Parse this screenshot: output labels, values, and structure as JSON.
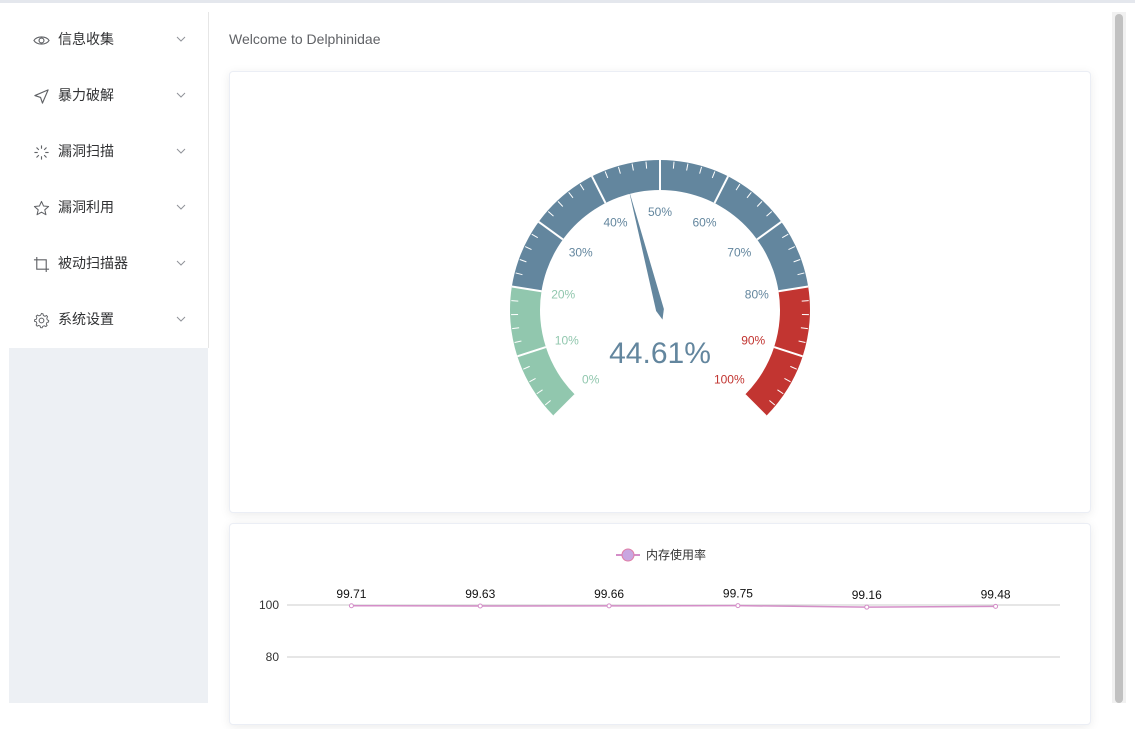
{
  "sidebar": {
    "items": [
      {
        "label": "信息收集",
        "icon": "eye-icon"
      },
      {
        "label": "暴力破解",
        "icon": "send-icon"
      },
      {
        "label": "漏洞扫描",
        "icon": "loading-icon"
      },
      {
        "label": "漏洞利用",
        "icon": "star-icon"
      },
      {
        "label": "被动扫描器",
        "icon": "crop-icon"
      },
      {
        "label": "系统设置",
        "icon": "gear-icon"
      }
    ]
  },
  "main": {
    "title": "Welcome to Delphinidae"
  },
  "gauge": {
    "value_text": "44.61%",
    "value": 44.61,
    "ticks": [
      "0%",
      "10%",
      "20%",
      "30%",
      "40%",
      "50%",
      "60%",
      "70%",
      "80%",
      "90%",
      "100%"
    ],
    "colors": {
      "low": "#91c7ae",
      "mid": "#63869e",
      "high": "#c23531"
    }
  },
  "chart_data": {
    "type": "line",
    "series": [
      {
        "name": "内存使用率",
        "values": [
          99.71,
          99.63,
          99.66,
          99.75,
          99.16,
          99.48
        ]
      }
    ],
    "y_ticks": [
      "100",
      "80"
    ],
    "legend_position": "top-center",
    "color": "#d48ec8"
  }
}
